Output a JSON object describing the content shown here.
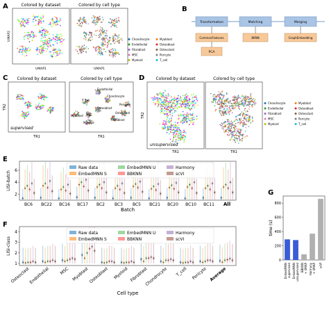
{
  "panels": {
    "A": {
      "letter": "A",
      "left_title": "Colored by dataset",
      "right_title": "Colored by cell type",
      "xlabel": "UMAP1",
      "ylabel": "UMAP2",
      "legend": [
        {
          "label": "Chondrocyte",
          "color": "#1f77b4"
        },
        {
          "label": "Myoblast",
          "color": "#ff7f0e"
        },
        {
          "label": "Endothelial",
          "color": "#2ca02c"
        },
        {
          "label": "Osteoblast",
          "color": "#d62728"
        },
        {
          "label": "Fibroblast",
          "color": "#9467bd"
        },
        {
          "label": "Osteoclast",
          "color": "#8c564b"
        },
        {
          "label": "MSC",
          "color": "#e377c2"
        },
        {
          "label": "Pericyte",
          "color": "#7f7f7f"
        },
        {
          "label": "Myeloid",
          "color": "#bcbd22"
        },
        {
          "label": "T_cell",
          "color": "#17becf"
        }
      ]
    },
    "B": {
      "letter": "B",
      "top": [
        "Transformation",
        "Matching",
        "Merging"
      ],
      "mid": [
        "CommonFeatures",
        "BKNN",
        "GraphEmbedding"
      ],
      "bottom": "PCA"
    },
    "C": {
      "letter": "C",
      "left_title": "Colored by dataset",
      "right_title": "Colored by cell type",
      "xlabel_left": "TR1",
      "xlabel_right": "TR1",
      "ylabel": "TR2",
      "mode": "supervised",
      "labels": [
        "Endothelial",
        "Chondrocyte",
        "T_cell",
        "Osteoblast",
        "Myoblast",
        "MSC",
        "Myeloid",
        "Fibroblast",
        "Osteoclast",
        "Pericyte"
      ]
    },
    "D": {
      "letter": "D",
      "left_title": "Colored by dataset",
      "right_title": "Colored by cell type",
      "xlabel": "TR1",
      "ylabel": "TR2",
      "mode": "unsupervised",
      "legend": [
        {
          "label": "Chondrocyte",
          "color": "#1f77b4"
        },
        {
          "label": "Myoblast",
          "color": "#ff7f0e"
        },
        {
          "label": "Endothelial",
          "color": "#2ca02c"
        },
        {
          "label": "Osteoblast",
          "color": "#d62728"
        },
        {
          "label": "Fibroblast",
          "color": "#9467bd"
        },
        {
          "label": "Osteoclast",
          "color": "#8c564b"
        },
        {
          "label": "MSC",
          "color": "#e377c2"
        },
        {
          "label": "Pericyte",
          "color": "#7f7f7f"
        },
        {
          "label": "Myeloid",
          "color": "#bcbd22"
        },
        {
          "label": "T_cell",
          "color": "#17becf"
        }
      ]
    },
    "E": {
      "letter": "E"
    },
    "F": {
      "letter": "F"
    },
    "G": {
      "letter": "G"
    }
  },
  "method_legend": [
    {
      "label": "Raw data",
      "color": "#7fb3d9"
    },
    {
      "label": "EmbedMNN U",
      "color": "#9fd89f"
    },
    {
      "label": "Harmony",
      "color": "#c5b0d5"
    },
    {
      "label": "EmbedMNN S",
      "color": "#ffbb78"
    },
    {
      "label": "BBKNN",
      "color": "#ff9896"
    },
    {
      "label": "scVI",
      "color": "#c49c94"
    }
  ],
  "chart_data": [
    {
      "panel": "E",
      "type": "violin",
      "ylabel": "LISI-batch",
      "xlabel": "Batch",
      "categories": [
        "BC6",
        "BC22",
        "BC16",
        "BC17",
        "BC2",
        "BC3",
        "BC5",
        "BC21",
        "BC20",
        "BC10",
        "BC11",
        "All"
      ],
      "yticks": [
        2,
        4,
        6
      ],
      "ylim": [
        1,
        7.5
      ],
      "series": [
        {
          "name": "Raw data",
          "values": [
            1.3,
            1.4,
            1.3,
            1.5,
            1.4,
            1.3,
            1.4,
            1.3,
            1.4,
            1.3,
            1.4,
            1.4
          ]
        },
        {
          "name": "EmbedMNN S",
          "values": [
            3.0,
            3.4,
            2.8,
            3.6,
            3.2,
            3.0,
            3.3,
            2.9,
            3.1,
            3.2,
            3.0,
            3.2
          ]
        },
        {
          "name": "EmbedMNN U",
          "values": [
            3.4,
            3.8,
            3.2,
            4.0,
            3.6,
            3.4,
            3.7,
            3.3,
            3.5,
            3.6,
            3.4,
            3.6
          ]
        },
        {
          "name": "BBKNN",
          "values": [
            2.8,
            3.1,
            2.6,
            3.3,
            3.0,
            2.8,
            3.1,
            2.7,
            2.9,
            3.0,
            2.8,
            3.0
          ]
        },
        {
          "name": "Harmony",
          "values": [
            3.8,
            4.2,
            3.6,
            4.4,
            4.0,
            3.8,
            4.1,
            3.7,
            3.9,
            4.0,
            3.8,
            4.0
          ]
        },
        {
          "name": "scVI",
          "values": [
            2.2,
            2.5,
            2.1,
            2.6,
            2.3,
            2.2,
            2.4,
            2.1,
            2.3,
            2.2,
            2.3,
            2.3
          ]
        }
      ]
    },
    {
      "panel": "F",
      "type": "violin",
      "ylabel": "LISI-class",
      "xlabel": "Cell type",
      "categories": [
        "Osteoclast",
        "Endothelial",
        "MSC",
        "Myoblast",
        "Osteoblast",
        "Myeloid",
        "Fibroblast",
        "Chondrocyte",
        "T_cell",
        "Pericyte",
        "Average"
      ],
      "yticks": [
        1,
        2,
        3,
        4
      ],
      "ylim": [
        0.8,
        4.5
      ],
      "series": [
        {
          "name": "Raw data",
          "values": [
            1.1,
            1.2,
            1.3,
            1.8,
            1.1,
            1.1,
            1.4,
            1.2,
            1.1,
            1.2,
            1.25
          ]
        },
        {
          "name": "EmbedMNN S",
          "values": [
            1.05,
            1.1,
            1.2,
            1.5,
            1.05,
            1.05,
            1.2,
            1.1,
            1.05,
            1.1,
            1.12
          ]
        },
        {
          "name": "EmbedMNN U",
          "values": [
            1.1,
            1.2,
            1.3,
            2.0,
            1.1,
            1.1,
            1.5,
            1.3,
            1.1,
            1.2,
            1.3
          ]
        },
        {
          "name": "BBKNN",
          "values": [
            1.1,
            1.2,
            1.4,
            2.4,
            1.2,
            1.1,
            1.5,
            1.3,
            1.1,
            1.3,
            1.35
          ]
        },
        {
          "name": "Harmony",
          "values": [
            1.2,
            1.3,
            1.5,
            2.6,
            1.2,
            1.2,
            1.6,
            1.4,
            1.2,
            1.3,
            1.45
          ]
        },
        {
          "name": "scVI",
          "values": [
            1.1,
            1.2,
            1.4,
            2.2,
            1.1,
            1.1,
            1.5,
            1.3,
            1.1,
            1.2,
            1.3
          ]
        }
      ]
    },
    {
      "panel": "G",
      "type": "bar",
      "ylabel": "time (s)",
      "categories": [
        "EmbedMNN supervised",
        "EmbedMNN unsupervised",
        "BBKNN",
        "Harmony + UMAP",
        "scVI"
      ],
      "tick_labels": [
        "EmbedMNN\nsupervised",
        "EmbedMNN\nunsupervised",
        "BBKNN\n+ UMAP",
        "Harmony\n+ UMAP",
        "scVI"
      ],
      "values": [
        290,
        280,
        80,
        370,
        860
      ],
      "colors": [
        "#3b5bd6",
        "#3b5bd6",
        "#b0b0b0",
        "#b0b0b0",
        "#b0b0b0"
      ],
      "yticks": [
        0,
        200,
        400,
        600,
        800
      ],
      "ylim": [
        0,
        900
      ]
    }
  ]
}
